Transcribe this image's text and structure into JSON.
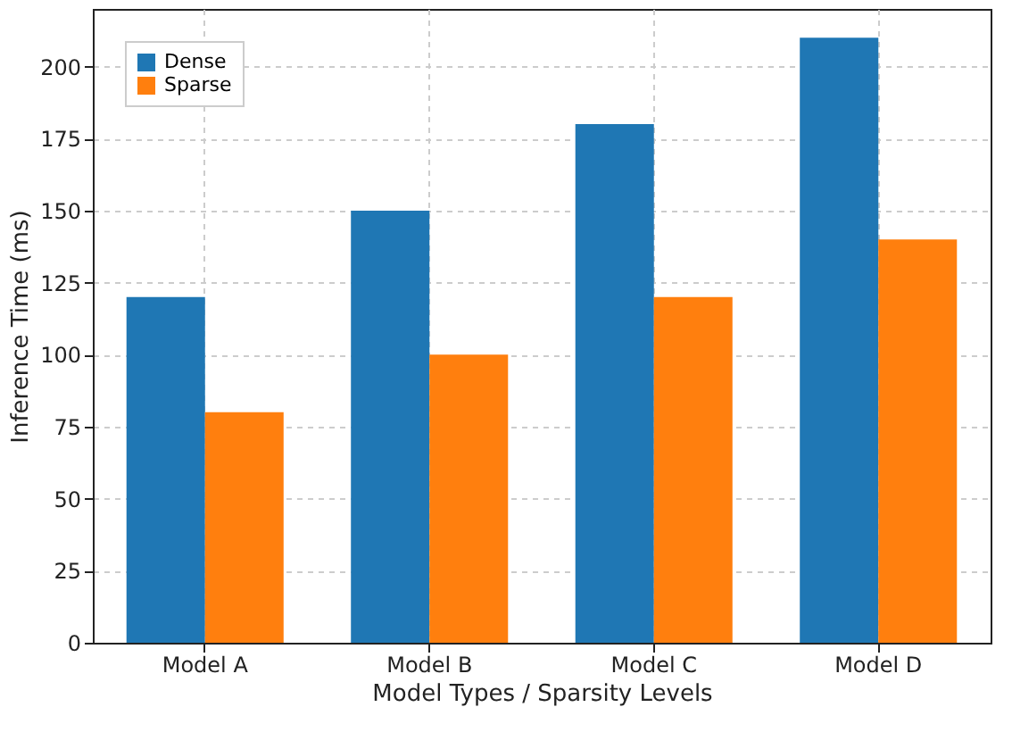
{
  "chart_data": {
    "type": "bar",
    "xlabel": "Model Types / Sparsity Levels",
    "ylabel": "Inference Time (ms)",
    "categories": [
      "Model A",
      "Model B",
      "Model C",
      "Model D"
    ],
    "series": [
      {
        "name": "Dense",
        "color": "#1f77b4",
        "values": [
          120,
          150,
          180,
          210
        ]
      },
      {
        "name": "Sparse",
        "color": "#ff7f0e",
        "values": [
          80,
          100,
          120,
          140
        ]
      }
    ],
    "ylim": [
      0,
      220
    ],
    "yticks": [
      0,
      25,
      50,
      75,
      100,
      125,
      150,
      175,
      200
    ],
    "grid": true,
    "legend": "top left"
  }
}
